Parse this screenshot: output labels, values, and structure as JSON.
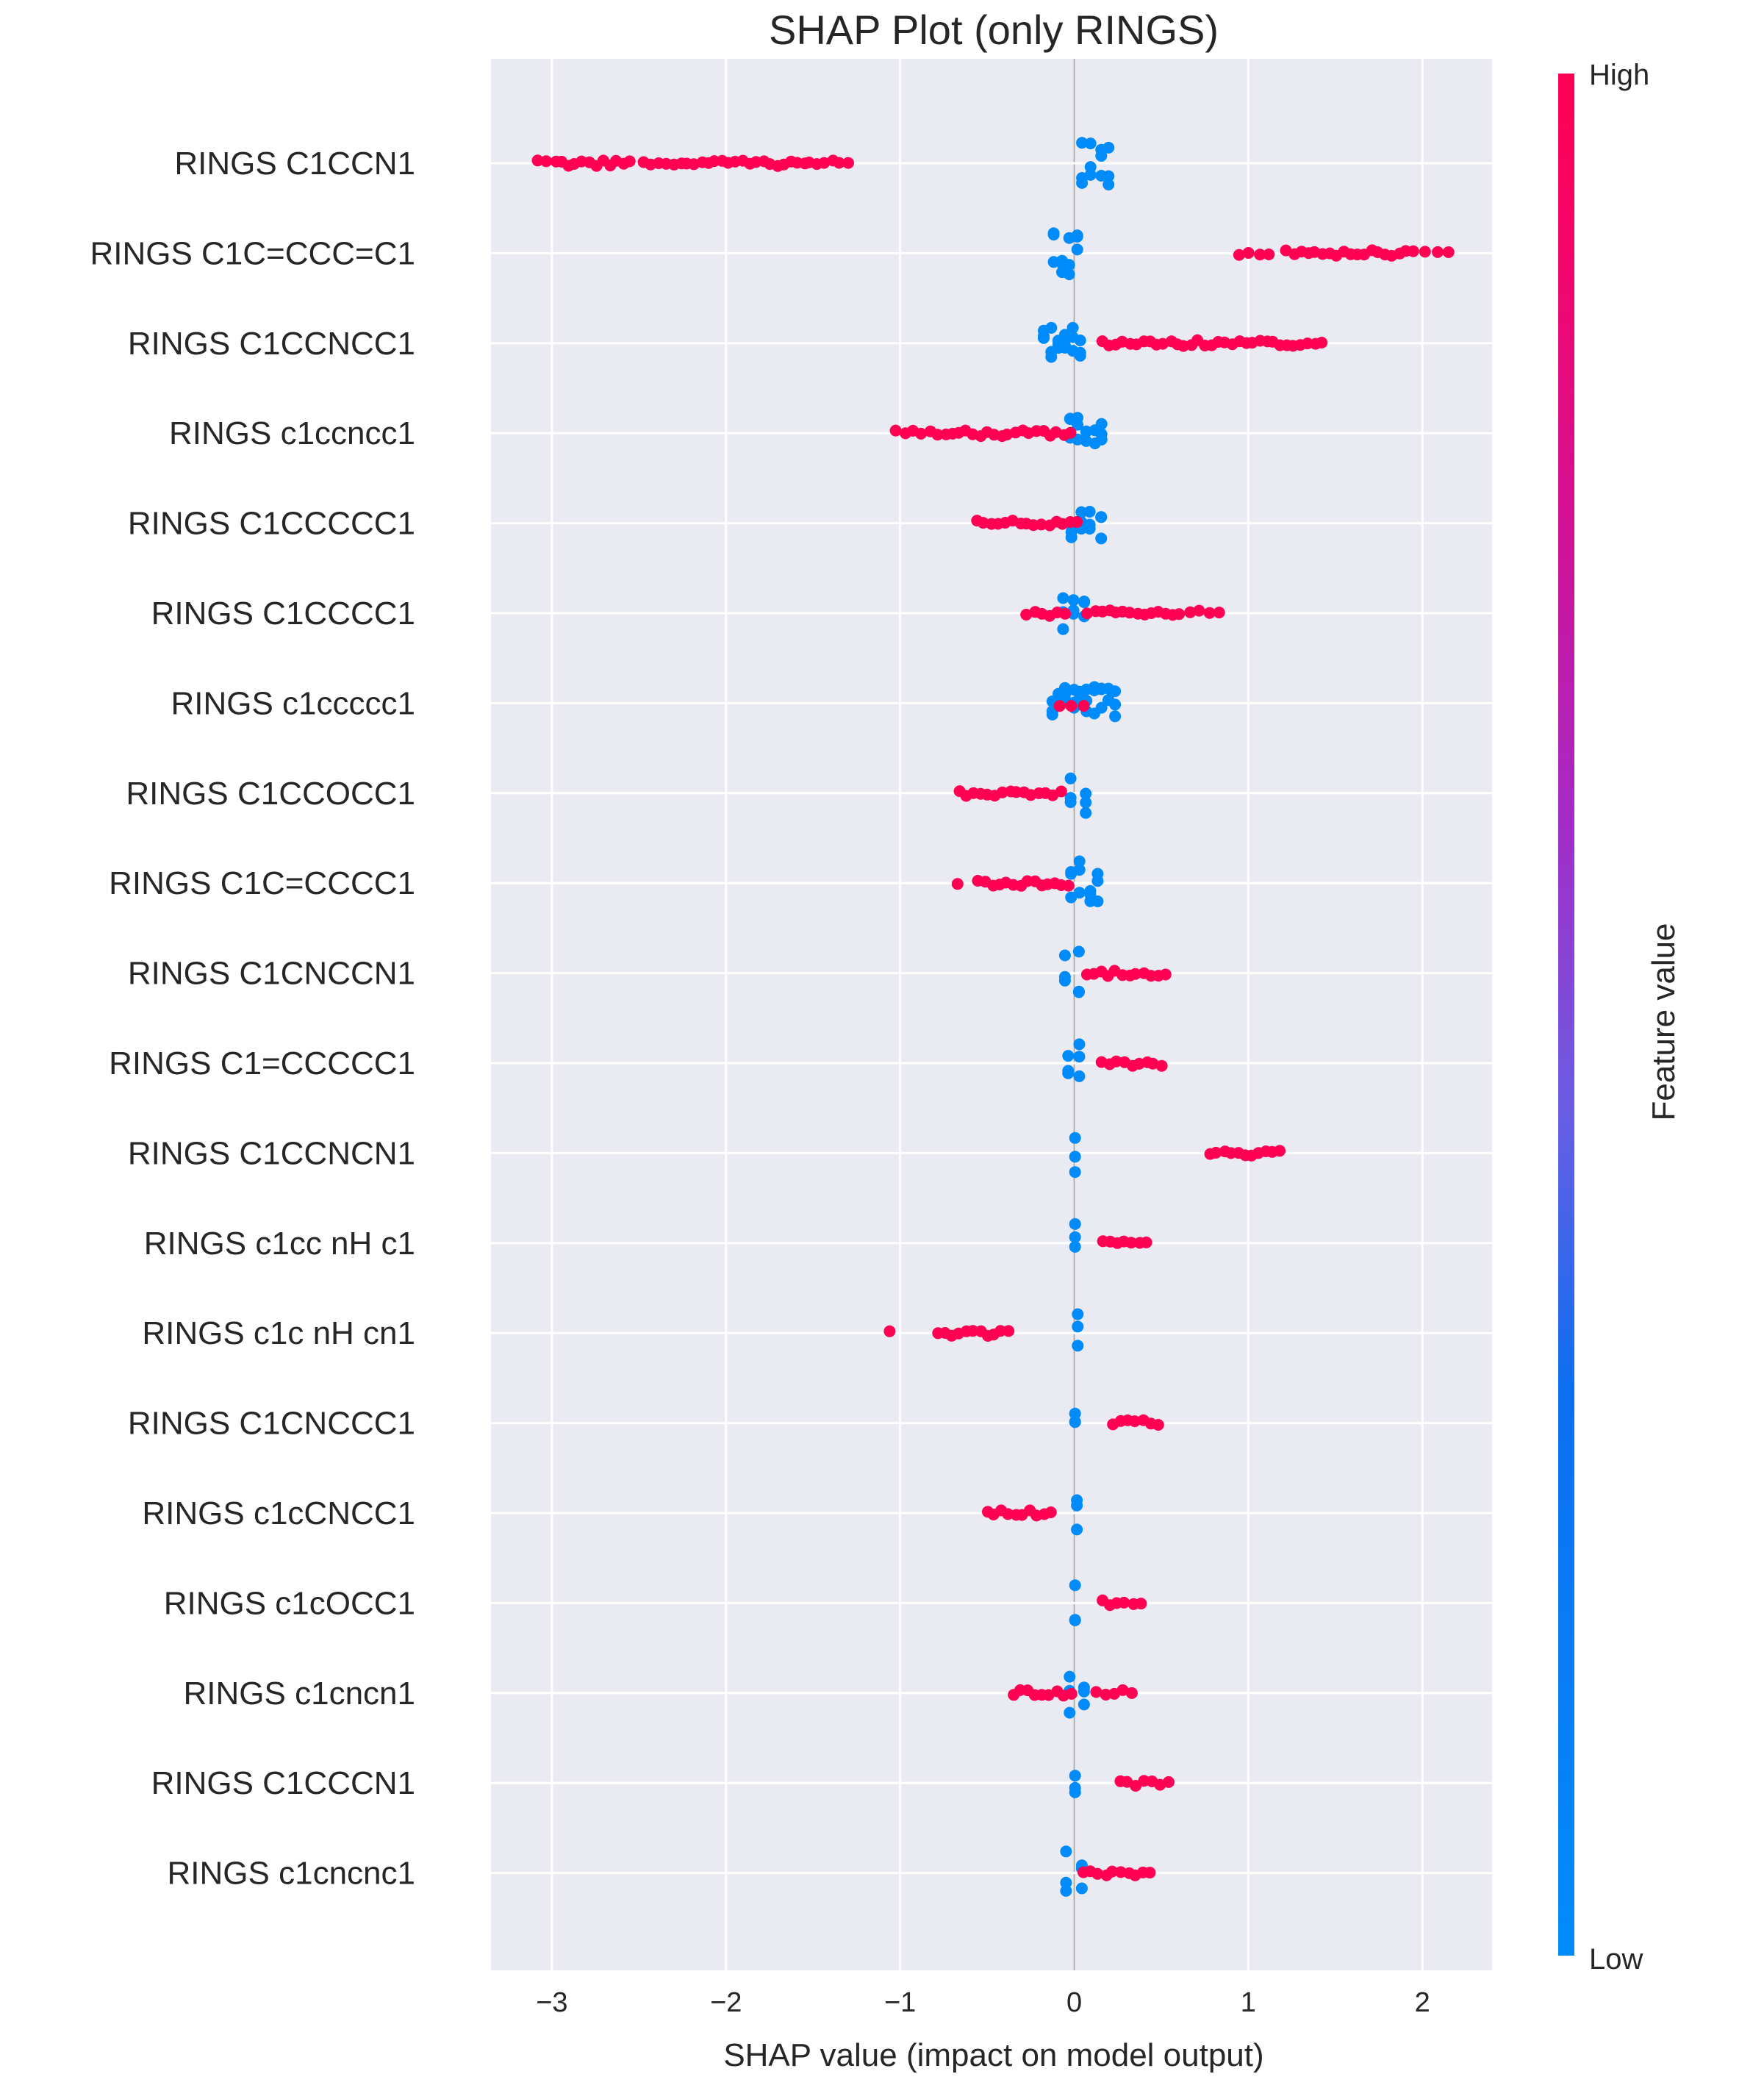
{
  "chart_data": {
    "type": "scatter",
    "title": "SHAP Plot (only RINGS)",
    "xlabel": "SHAP value (impact on model output)",
    "ylabel": "",
    "xlim": [
      -3.35,
      2.4
    ],
    "xticks": [
      -3,
      -2,
      -1,
      0,
      1,
      2
    ],
    "xtick_labels": [
      "−3",
      "−2",
      "−1",
      "0",
      "1",
      "2"
    ],
    "grid": true,
    "colorbar": {
      "label": "Feature value",
      "high_label": "High",
      "low_label": "Low",
      "high_color": "#ff0052",
      "low_color": "#008bfb"
    },
    "features": [
      {
        "name": "RINGS C1CCN1",
        "high": [
          [
            -3.08,
            -2.98
          ],
          [
            -2.95,
            -2.55
          ],
          [
            -2.48,
            -2.25
          ],
          [
            -2.22,
            -1.55
          ],
          [
            -1.52,
            -1.3
          ]
        ],
        "low": [
          [
            0.05,
            0.2
          ]
        ]
      },
      {
        "name": "RINGS C1C=CCC=C1",
        "high": [
          [
            0.95,
            1.12
          ],
          [
            1.22,
            1.95
          ],
          [
            2.02,
            2.15
          ]
        ],
        "low": [
          [
            -0.12,
            0.02
          ]
        ]
      },
      {
        "name": "RINGS C1CCNCC1",
        "high": [
          [
            0.16,
            1.42
          ]
        ],
        "low": [
          [
            -0.18,
            0.03
          ]
        ]
      },
      {
        "name": "RINGS c1ccncc1",
        "high": [
          [
            -1.02,
            -0.88
          ],
          [
            -0.82,
            -0.02
          ]
        ],
        "low": [
          [
            -0.02,
            0.16
          ]
        ]
      },
      {
        "name": "RINGS C1CCCCC1",
        "high": [
          [
            -0.56,
            0.02
          ]
        ],
        "low": [
          [
            -0.02,
            0.15
          ]
        ]
      },
      {
        "name": "RINGS C1CCCC1",
        "high": [
          [
            -0.27,
            -0.05
          ],
          [
            0.08,
            0.6
          ],
          [
            0.66,
            0.83
          ]
        ],
        "low": [
          [
            -0.07,
            0.06
          ]
        ]
      },
      {
        "name": "RINGS c1ccccc1",
        "high": [
          [
            -0.08,
            0.05
          ]
        ],
        "low": [
          [
            -0.13,
            0.24
          ]
        ]
      },
      {
        "name": "RINGS C1CCOCC1",
        "high": [
          [
            -0.66,
            -0.08
          ]
        ],
        "low": [
          [
            -0.02,
            0.06
          ]
        ]
      },
      {
        "name": "RINGS C1C=CCCC1",
        "high": [
          [
            -0.67,
            -0.67
          ],
          [
            -0.55,
            -0.03
          ]
        ],
        "low": [
          [
            -0.02,
            0.14
          ]
        ]
      },
      {
        "name": "RINGS C1CNCCN1",
        "high": [
          [
            0.07,
            0.52
          ]
        ],
        "low": [
          [
            -0.05,
            0.03
          ]
        ]
      },
      {
        "name": "RINGS C1=CCCCC1",
        "high": [
          [
            0.16,
            0.5
          ]
        ],
        "low": [
          [
            -0.03,
            0.03
          ]
        ]
      },
      {
        "name": "RINGS C1CCNCN1",
        "high": [
          [
            0.78,
            1.18
          ]
        ],
        "low": [
          [
            -0.02,
            0.03
          ]
        ]
      },
      {
        "name": "RINGS c1cc nH c1",
        "high": [
          [
            0.16,
            0.42
          ]
        ],
        "low": [
          [
            -0.02,
            0.03
          ]
        ]
      },
      {
        "name": "RINGS c1c nH cn1",
        "high": [
          [
            -1.06,
            -1.06
          ],
          [
            -0.78,
            -0.38
          ]
        ],
        "low": [
          [
            0.0,
            0.04
          ]
        ]
      },
      {
        "name": "RINGS C1CNCCC1",
        "high": [
          [
            0.22,
            0.48
          ]
        ],
        "low": [
          [
            -0.02,
            0.03
          ]
        ]
      },
      {
        "name": "RINGS c1cCNCC1",
        "high": [
          [
            -0.5,
            -0.13
          ]
        ],
        "low": [
          [
            -0.01,
            0.04
          ]
        ]
      },
      {
        "name": "RINGS c1cOCC1",
        "high": [
          [
            0.16,
            0.38
          ]
        ],
        "low": [
          [
            -0.02,
            0.03
          ]
        ]
      },
      {
        "name": "RINGS c1cncn1",
        "high": [
          [
            -0.35,
            -0.02
          ],
          [
            0.13,
            0.33
          ]
        ],
        "low": [
          [
            -0.03,
            0.06
          ]
        ]
      },
      {
        "name": "RINGS C1CCCN1",
        "high": [
          [
            0.26,
            0.54
          ]
        ],
        "low": [
          [
            -0.02,
            0.03
          ]
        ]
      },
      {
        "name": "RINGS c1cncnc1",
        "high": [
          [
            0.05,
            0.44
          ]
        ],
        "low": [
          [
            -0.05,
            0.04
          ]
        ]
      }
    ]
  }
}
